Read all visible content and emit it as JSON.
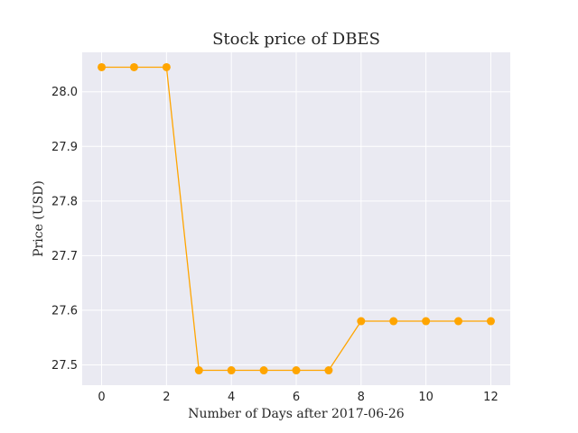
{
  "chart_data": {
    "type": "line",
    "title": "Stock price of DBES",
    "xlabel": "Number of Days after 2017-06-26",
    "ylabel": "Price (USD)",
    "x": [
      0,
      1,
      2,
      3,
      4,
      5,
      6,
      7,
      8,
      9,
      10,
      11,
      12
    ],
    "series": [
      {
        "values": [
          28.045,
          28.045,
          28.045,
          27.49,
          27.49,
          27.49,
          27.49,
          27.49,
          27.58,
          27.58,
          27.58,
          27.58,
          27.58
        ]
      }
    ],
    "xlim": [
      -0.6,
      12.6
    ],
    "ylim": [
      27.4628,
      28.0722
    ],
    "xticks": [
      0,
      2,
      4,
      6,
      8,
      10,
      12
    ],
    "yticks": [
      27.5,
      27.6,
      27.7,
      27.8,
      27.9,
      28.0
    ],
    "grid": true,
    "colors": {
      "line": "#ffa500",
      "background": "#eaeaf2",
      "grid": "#ffffff"
    }
  }
}
